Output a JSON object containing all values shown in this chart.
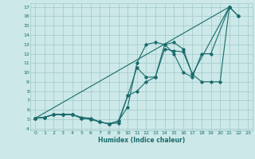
{
  "title": "",
  "xlabel": "Humidex (Indice chaleur)",
  "ylabel": "",
  "bg_color": "#cce8e8",
  "grid_color": "#a0c8c8",
  "line_color": "#1a6b6b",
  "xlim": [
    -0.5,
    23.5
  ],
  "ylim": [
    3.8,
    17.4
  ],
  "xticks": [
    0,
    1,
    2,
    3,
    4,
    5,
    6,
    7,
    8,
    9,
    10,
    11,
    12,
    13,
    14,
    15,
    16,
    17,
    18,
    19,
    20,
    21,
    22,
    23
  ],
  "yticks": [
    4,
    5,
    6,
    7,
    8,
    9,
    10,
    11,
    12,
    13,
    14,
    15,
    16,
    17
  ],
  "series": [
    [
      [
        0,
        5.1
      ],
      [
        1,
        5.2
      ],
      [
        2,
        5.5
      ],
      [
        3,
        5.5
      ],
      [
        4,
        5.5
      ],
      [
        5,
        5.2
      ],
      [
        6,
        5.1
      ],
      [
        7,
        4.7
      ],
      [
        8,
        4.5
      ],
      [
        9,
        4.6
      ],
      [
        10,
        7.5
      ],
      [
        11,
        8.0
      ],
      [
        12,
        9.0
      ],
      [
        13,
        9.5
      ],
      [
        14,
        12.5
      ],
      [
        15,
        12.3
      ],
      [
        16,
        12.2
      ],
      [
        17,
        9.8
      ],
      [
        18,
        9.0
      ],
      [
        19,
        9.0
      ],
      [
        20,
        9.0
      ],
      [
        21,
        17.0
      ],
      [
        22,
        16.0
      ]
    ],
    [
      [
        0,
        5.1
      ],
      [
        1,
        5.2
      ],
      [
        2,
        5.5
      ],
      [
        3,
        5.5
      ],
      [
        4,
        5.5
      ],
      [
        5,
        5.1
      ],
      [
        6,
        5.0
      ],
      [
        7,
        4.7
      ],
      [
        8,
        4.5
      ],
      [
        9,
        4.8
      ],
      [
        10,
        6.3
      ],
      [
        11,
        11.0
      ],
      [
        12,
        13.0
      ],
      [
        13,
        13.2
      ],
      [
        14,
        13.0
      ],
      [
        15,
        12.0
      ],
      [
        16,
        10.0
      ],
      [
        17,
        9.5
      ],
      [
        18,
        12.0
      ],
      [
        19,
        12.0
      ],
      [
        21,
        17.0
      ]
    ],
    [
      [
        0,
        5.1
      ],
      [
        1,
        5.2
      ],
      [
        2,
        5.5
      ],
      [
        3,
        5.5
      ],
      [
        4,
        5.5
      ],
      [
        5,
        5.1
      ],
      [
        6,
        5.0
      ],
      [
        7,
        4.7
      ],
      [
        8,
        4.5
      ],
      [
        9,
        4.8
      ],
      [
        10,
        7.5
      ],
      [
        11,
        10.5
      ],
      [
        12,
        9.5
      ],
      [
        13,
        9.5
      ],
      [
        14,
        13.0
      ],
      [
        15,
        13.2
      ],
      [
        16,
        12.5
      ],
      [
        17,
        9.8
      ],
      [
        21,
        17.0
      ]
    ],
    [
      [
        0,
        5.1
      ],
      [
        21,
        17.0
      ],
      [
        22,
        16.0
      ]
    ]
  ]
}
